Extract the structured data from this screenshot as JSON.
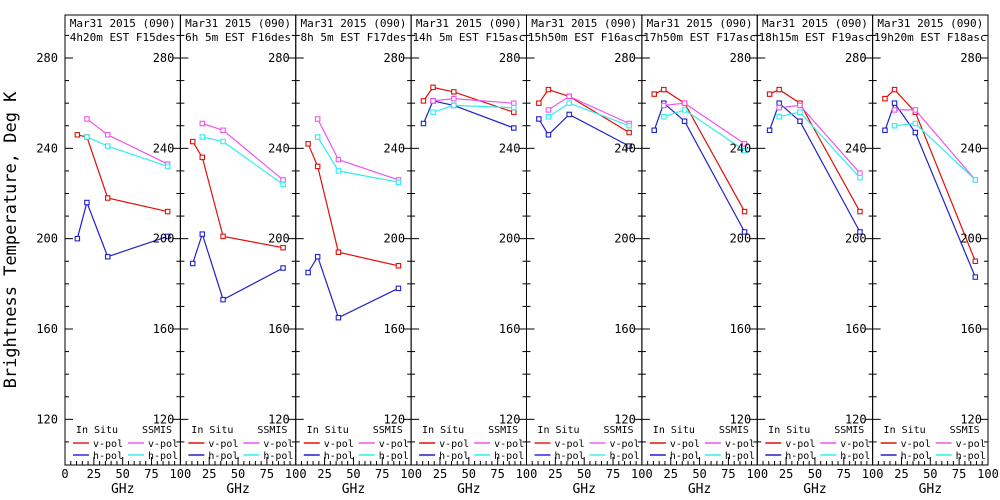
{
  "chart_data": {
    "type": "line",
    "title": "",
    "xlabel": "GHz",
    "ylabel": "Brightness Temperature, Deg K",
    "xlim": [
      0,
      100
    ],
    "ylim": [
      100,
      300
    ],
    "xticks": [
      0,
      25,
      50,
      75,
      100
    ],
    "yticks": [
      280,
      240,
      200,
      160,
      120
    ],
    "grid": false,
    "legend": {
      "position": "bottom-inside-each-panel",
      "groups": [
        {
          "title": "In Situ",
          "entries": [
            {
              "label": "v-pol",
              "series": "in_situ_v"
            },
            {
              "label": "h-pol",
              "series": "in_situ_h"
            }
          ]
        },
        {
          "title": "SSMIS",
          "entries": [
            {
              "label": "v-pol",
              "series": "ssmis_v"
            },
            {
              "label": "h-pol",
              "series": "ssmis_h"
            }
          ]
        }
      ]
    },
    "colors": {
      "in_situ_v": "#e01008",
      "in_situ_h": "#2020cc",
      "ssmis_v": "#ee55ee",
      "ssmis_h": "#30eeee",
      "axis": "#000000",
      "background": "#ffffff"
    },
    "in_situ_freqs_ghz": [
      10.7,
      19,
      37,
      89
    ],
    "ssmis_freqs_ghz": [
      19,
      37,
      89
    ],
    "panels": [
      {
        "title_line1": "Mar31 2015 (090)",
        "title_line2": "4h20m EST F15des",
        "in_situ_v": [
          246,
          245,
          218,
          212
        ],
        "in_situ_h": [
          200,
          216,
          192,
          201
        ],
        "ssmis_v": [
          253,
          246,
          233
        ],
        "ssmis_h": [
          245,
          241,
          232
        ]
      },
      {
        "title_line1": "Mar31 2015 (090)",
        "title_line2": "6h 5m EST F16des",
        "in_situ_v": [
          243,
          236,
          201,
          196
        ],
        "in_situ_h": [
          189,
          202,
          173,
          187
        ],
        "ssmis_v": [
          251,
          248,
          226
        ],
        "ssmis_h": [
          245,
          243,
          224
        ]
      },
      {
        "title_line1": "Mar31 2015 (090)",
        "title_line2": "8h 5m EST F17des",
        "in_situ_v": [
          242,
          232,
          194,
          188
        ],
        "in_situ_h": [
          185,
          192,
          165,
          178
        ],
        "ssmis_v": [
          253,
          235,
          226
        ],
        "ssmis_h": [
          245,
          230,
          225
        ]
      },
      {
        "title_line1": "Mar31 2015 (090)",
        "title_line2": "14h 5m EST F15asc",
        "in_situ_v": [
          261,
          267,
          265,
          256
        ],
        "in_situ_h": [
          251,
          261,
          259,
          249
        ],
        "ssmis_v": [
          261,
          262,
          260
        ],
        "ssmis_h": [
          256,
          259,
          258
        ]
      },
      {
        "title_line1": "Mar31 2015 (090)",
        "title_line2": "15h50m EST F16asc",
        "in_situ_v": [
          260,
          266,
          263,
          247
        ],
        "in_situ_h": [
          253,
          246,
          255,
          241
        ],
        "ssmis_v": [
          257,
          263,
          251
        ],
        "ssmis_h": [
          254,
          260,
          250
        ]
      },
      {
        "title_line1": "Mar31 2015 (090)",
        "title_line2": "17h50m EST F17asc",
        "in_situ_v": [
          264,
          266,
          260,
          212
        ],
        "in_situ_h": [
          248,
          260,
          252,
          203
        ],
        "ssmis_v": [
          259,
          260,
          242
        ],
        "ssmis_h": [
          254,
          257,
          239
        ]
      },
      {
        "title_line1": "Mar31 2015 (090)",
        "title_line2": "18h15m EST F19asc",
        "in_situ_v": [
          264,
          266,
          260,
          212
        ],
        "in_situ_h": [
          248,
          260,
          252,
          203
        ],
        "ssmis_v": [
          258,
          259,
          229
        ],
        "ssmis_h": [
          254,
          256,
          227
        ]
      },
      {
        "title_line1": "Mar31 2015 (090)",
        "title_line2": "19h20m EST F18asc",
        "in_situ_v": [
          262,
          266,
          256,
          190
        ],
        "in_situ_h": [
          248,
          260,
          247,
          183
        ],
        "ssmis_v": [
          257,
          257,
          226
        ],
        "ssmis_h": [
          250,
          251,
          226
        ]
      }
    ]
  }
}
